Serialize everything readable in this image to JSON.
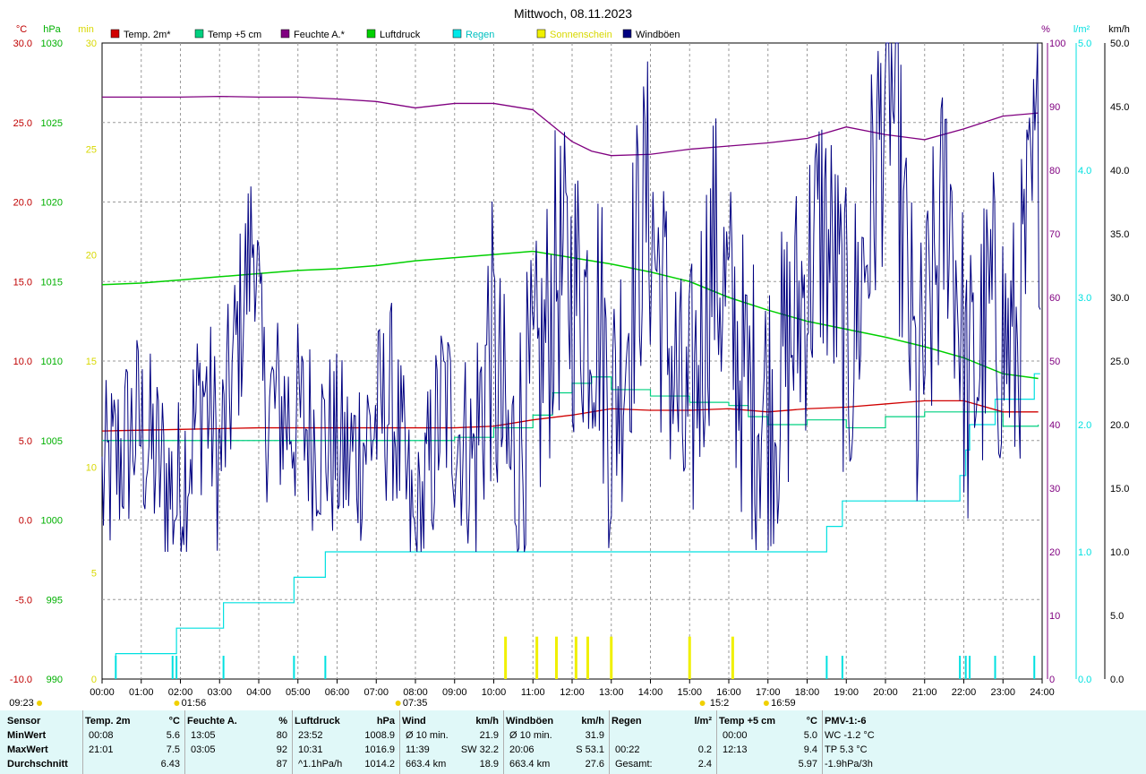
{
  "title": "Mittwoch, 08.11.2023",
  "chart_data": {
    "type": "line",
    "x_ticks": [
      "00:00",
      "01:00",
      "02:00",
      "03:00",
      "04:00",
      "05:00",
      "06:00",
      "07:00",
      "08:00",
      "09:00",
      "10:00",
      "11:00",
      "12:00",
      "13:00",
      "14:00",
      "15:00",
      "16:00",
      "17:00",
      "18:00",
      "19:00",
      "20:00",
      "21:00",
      "22:00",
      "23:00",
      "24:00"
    ],
    "axes": {
      "temp": {
        "unit": "°C",
        "min": -10,
        "max": 30,
        "ticks": [
          "-10.0",
          "-5.0",
          "0.0",
          "5.0",
          "10.0",
          "15.0",
          "20.0",
          "25.0",
          "30.0"
        ],
        "color": "#c00000"
      },
      "pressure": {
        "unit": "hPa",
        "min": 990,
        "max": 1030,
        "ticks": [
          "990",
          "995",
          "1000",
          "1005",
          "1010",
          "1015",
          "1020",
          "1025",
          "1030"
        ],
        "color": "#00b000"
      },
      "sun_min": {
        "unit": "min",
        "min": 0,
        "max": 30,
        "ticks": [
          "0",
          "5",
          "10",
          "15",
          "20",
          "25",
          "30"
        ],
        "color": "#e0e000"
      },
      "humidity": {
        "unit": "%",
        "min": 0,
        "max": 100,
        "ticks": [
          "0",
          "10",
          "20",
          "30",
          "40",
          "50",
          "60",
          "70",
          "80",
          "90",
          "100"
        ],
        "color": "#800080"
      },
      "rain": {
        "unit": "l/m²",
        "min": 0,
        "max": 5,
        "ticks": [
          "0.0",
          "1.0",
          "2.0",
          "3.0",
          "4.0",
          "5.0"
        ],
        "color": "#00e0e0"
      },
      "wind": {
        "unit": "km/h",
        "min": 0,
        "max": 50,
        "ticks": [
          "0.0",
          "5.0",
          "10.0",
          "15.0",
          "20.0",
          "25.0",
          "30.0",
          "35.0",
          "40.0",
          "45.0",
          "50.0"
        ],
        "color": "#000000"
      }
    },
    "legend": [
      {
        "name": "Temp. 2m*",
        "color": "#d00000"
      },
      {
        "name": "Temp +5 cm",
        "color": "#00d080"
      },
      {
        "name": "Feuchte A.*",
        "color": "#800080"
      },
      {
        "name": "Luftdruck",
        "color": "#00d000"
      },
      {
        "name": "Regen",
        "color": "#00e8e8"
      },
      {
        "name": "Sonnenschein",
        "color": "#f0f000"
      },
      {
        "name": "Windböen",
        "color": "#000080"
      }
    ],
    "series": [
      {
        "name": "Temp. 2m*",
        "axis": "temp",
        "x": [
          0,
          2,
          4,
          6,
          7,
          8,
          9,
          10,
          11,
          12,
          13,
          14,
          15,
          16,
          17,
          18,
          19,
          20,
          21,
          22,
          23,
          23.9
        ],
        "values": [
          5.6,
          5.7,
          5.8,
          5.8,
          5.8,
          5.8,
          5.8,
          5.9,
          6.3,
          6.6,
          7.0,
          6.9,
          6.9,
          7.0,
          6.8,
          7.0,
          7.1,
          7.3,
          7.5,
          7.5,
          6.8,
          6.8
        ]
      },
      {
        "name": "Temp +5 cm",
        "axis": "temp",
        "x": [
          0,
          2,
          4,
          6,
          7,
          8,
          9,
          10,
          11,
          11.5,
          12,
          12.5,
          13,
          14,
          15,
          16,
          16.5,
          17,
          18,
          19,
          20,
          21,
          22,
          23,
          23.9
        ],
        "values": [
          5.0,
          5.0,
          5.0,
          5.0,
          5.0,
          5.0,
          5.2,
          5.8,
          6.6,
          8.0,
          8.6,
          9.0,
          8.2,
          7.8,
          7.4,
          7.2,
          6.5,
          6.0,
          6.3,
          5.8,
          6.5,
          6.8,
          6.8,
          5.9,
          6.0
        ]
      },
      {
        "name": "Feuchte A.*",
        "axis": "humidity",
        "x": [
          0,
          2,
          3,
          4,
          5,
          6,
          7,
          8,
          9,
          10,
          11,
          11.5,
          12,
          12.5,
          13,
          14,
          15,
          16,
          17,
          18,
          19,
          20,
          21,
          22,
          23,
          23.9
        ],
        "values": [
          91.5,
          91.5,
          91.6,
          91.5,
          91.5,
          91.2,
          90.8,
          89.8,
          90.5,
          90.5,
          89.5,
          87.0,
          84.5,
          83.0,
          82.3,
          82.5,
          83.3,
          83.8,
          84.3,
          85.0,
          86.8,
          85.6,
          84.8,
          86.5,
          88.5,
          89.0
        ]
      },
      {
        "name": "Luftdruck",
        "axis": "pressure",
        "x": [
          0,
          1,
          2,
          3,
          4,
          5,
          6,
          7,
          8,
          9,
          10,
          11,
          12,
          13,
          14,
          15,
          16,
          17,
          18,
          19,
          20,
          21,
          22,
          23,
          23.9
        ],
        "values": [
          1014.8,
          1014.9,
          1015.1,
          1015.3,
          1015.5,
          1015.7,
          1015.8,
          1016.0,
          1016.3,
          1016.5,
          1016.7,
          1016.9,
          1016.5,
          1016.1,
          1015.6,
          1015.0,
          1014.0,
          1013.2,
          1012.5,
          1012.0,
          1011.5,
          1010.9,
          1010.2,
          1009.2,
          1008.9
        ]
      },
      {
        "name": "Regen",
        "axis": "rain",
        "x": [
          0.35,
          1.8,
          1.9,
          3.1,
          4.9,
          5.7,
          18.5,
          18.9,
          21.9,
          22.05,
          22.15,
          22.8,
          23.8
        ],
        "values": [
          0.2,
          0.2,
          0.4,
          0.6,
          0.8,
          1.0,
          1.2,
          1.4,
          1.6,
          1.8,
          2.0,
          2.2,
          2.4
        ]
      },
      {
        "name": "Sonnenschein",
        "axis": "sun_min",
        "x": [
          10.3,
          11.1,
          11.6,
          12.1,
          12.4,
          13.0,
          15.0,
          16.1
        ],
        "values": [
          2,
          2,
          2,
          2,
          2,
          2,
          2,
          2
        ]
      },
      {
        "name": "Windböen",
        "axis": "wind",
        "x": [
          0,
          0.9,
          1.9,
          2.6,
          3.0,
          3.9,
          4.1,
          5.2,
          6.3,
          7.4,
          8.0,
          8.7,
          9.5,
          9.9,
          10.4,
          11.2,
          11.6,
          12.7,
          13.0,
          13.9,
          14.9,
          15.6,
          16.5,
          17.2,
          18.4,
          19.1,
          19.6,
          20.1,
          20.8,
          21.6,
          22.1,
          22.7,
          23.3,
          23.9
        ],
        "values": [
          19,
          24,
          18,
          27,
          21,
          40,
          26,
          24,
          21,
          26,
          14,
          26,
          21,
          31,
          20,
          28,
          36,
          33,
          24,
          42,
          22,
          38,
          26,
          26,
          40,
          29,
          40,
          53,
          25,
          43,
          26,
          33,
          29,
          45
        ]
      }
    ],
    "markers": [
      {
        "label": "09:23",
        "time": 0
      },
      {
        "label": "01:56",
        "time": 1.93
      },
      {
        "label": "07:35",
        "time": 7.58
      },
      {
        "label": "15:2",
        "time": 15.35
      },
      {
        "label": "16:59",
        "time": 16.98
      }
    ]
  },
  "stats": {
    "columns": [
      {
        "header": "Sensor",
        "unit": "",
        "rows": [
          "MinWert",
          "MaxWert",
          "Durchschnitt"
        ]
      },
      {
        "header": "Temp. 2m",
        "unit": "°C",
        "rows": [
          [
            "00:08",
            "5.6"
          ],
          [
            "21:01",
            "7.5"
          ],
          [
            "",
            "6.43"
          ]
        ]
      },
      {
        "header": "Feuchte A.",
        "unit": "%",
        "rows": [
          [
            "13:05",
            "80"
          ],
          [
            "03:05",
            "92"
          ],
          [
            "",
            "87"
          ]
        ]
      },
      {
        "header": "Luftdruck",
        "unit": "hPa",
        "rows": [
          [
            "23:52",
            "1008.9"
          ],
          [
            "10:31",
            "1016.9"
          ],
          [
            "^1.1hPa/h",
            "1014.2"
          ]
        ]
      },
      {
        "header": "Wind",
        "unit": "km/h",
        "rows": [
          [
            "Ø 10 min.",
            "21.9"
          ],
          [
            "11:39",
            "SW 32.2"
          ],
          [
            "663.4 km",
            "18.9"
          ]
        ]
      },
      {
        "header": "Windböen",
        "unit": "km/h",
        "rows": [
          [
            "Ø 10 min.",
            "31.9"
          ],
          [
            "20:06",
            "S 53.1"
          ],
          [
            "663.4 km",
            "27.6"
          ]
        ]
      },
      {
        "header": "Regen",
        "unit": "l/m²",
        "rows": [
          [
            "",
            ""
          ],
          [
            "00:22",
            "0.2"
          ],
          [
            "Gesamt:",
            "2.4"
          ]
        ]
      },
      {
        "header": "Temp +5 cm",
        "unit": "°C",
        "rows": [
          [
            "00:00",
            "5.0"
          ],
          [
            "12:13",
            "9.4"
          ],
          [
            "",
            "5.97"
          ]
        ]
      },
      {
        "header": "PMV-1:-6",
        "unit": "",
        "rows": [
          [
            "WC -1.2 °C",
            ""
          ],
          [
            "TP 5.3 °C",
            ""
          ],
          [
            "-1.9hPa/3h",
            ""
          ]
        ]
      }
    ]
  }
}
